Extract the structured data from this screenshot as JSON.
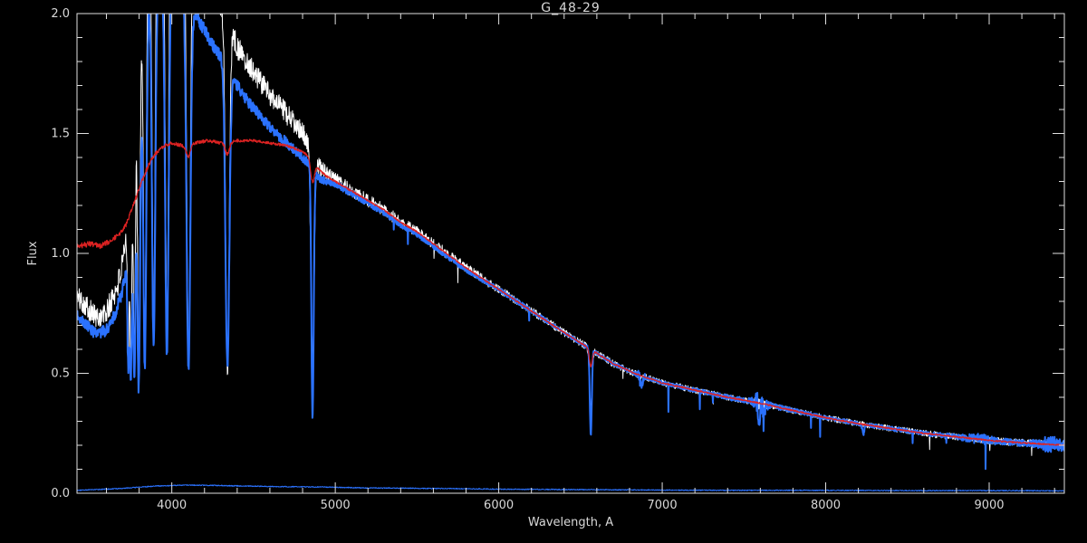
{
  "chart_data": {
    "type": "line",
    "title": "G_48-29",
    "xlabel": "Wavelength, A",
    "ylabel": "Flux",
    "xlim": [
      3420,
      9460
    ],
    "ylim": [
      0,
      2
    ],
    "grid": false,
    "legend": "none",
    "background": "#000000",
    "axis_color": "#e0e0e0",
    "text_color": "#d8d8d8",
    "x_ticks": {
      "values": [
        4000,
        5000,
        6000,
        7000,
        8000,
        9000
      ],
      "labels": [
        "4000",
        "5000",
        "6000",
        "7000",
        "8000",
        "9000"
      ]
    },
    "y_ticks": {
      "values": [
        0,
        0.5,
        1,
        1.5,
        2
      ],
      "labels": [
        "0.0",
        "0.5",
        "1.0",
        "1.5",
        "2.0"
      ]
    },
    "x_minor_step": 200,
    "y_minor_step": 0.1,
    "series": [
      {
        "name": "observed-white",
        "color": "#ffffff",
        "width": 1,
        "seed": 101,
        "continuum": [
          [
            3420,
            0.82
          ],
          [
            3480,
            0.78
          ],
          [
            3540,
            0.73
          ],
          [
            3600,
            0.75
          ],
          [
            3660,
            0.85
          ],
          [
            3700,
            0.95
          ],
          [
            3740,
            1.15
          ],
          [
            3780,
            1.55
          ],
          [
            3820,
            2.0
          ],
          [
            3860,
            2.35
          ],
          [
            3920,
            2.5
          ],
          [
            4000,
            2.55
          ],
          [
            4080,
            2.45
          ],
          [
            4160,
            2.3
          ],
          [
            4240,
            2.1
          ],
          [
            4320,
            2.0
          ],
          [
            4400,
            1.86
          ],
          [
            4480,
            1.78
          ],
          [
            4560,
            1.7
          ],
          [
            4640,
            1.63
          ],
          [
            4720,
            1.57
          ],
          [
            4800,
            1.5
          ],
          [
            4860,
            1.44
          ],
          [
            4900,
            1.36
          ],
          [
            4950,
            1.33
          ],
          [
            5000,
            1.31
          ],
          [
            5100,
            1.26
          ],
          [
            5200,
            1.22
          ],
          [
            5300,
            1.18
          ],
          [
            5400,
            1.13
          ],
          [
            5500,
            1.09
          ],
          [
            5660,
            1.01
          ],
          [
            5800,
            0.94
          ],
          [
            6000,
            0.85
          ],
          [
            6200,
            0.76
          ],
          [
            6400,
            0.67
          ],
          [
            6563,
            0.6
          ],
          [
            6700,
            0.54
          ],
          [
            6830,
            0.5
          ],
          [
            7000,
            0.46
          ],
          [
            7200,
            0.43
          ],
          [
            7400,
            0.4
          ],
          [
            7600,
            0.375
          ],
          [
            7800,
            0.345
          ],
          [
            8000,
            0.315
          ],
          [
            8200,
            0.29
          ],
          [
            8400,
            0.27
          ],
          [
            8600,
            0.25
          ],
          [
            8800,
            0.235
          ],
          [
            9000,
            0.22
          ],
          [
            9200,
            0.21
          ],
          [
            9460,
            0.2
          ]
        ],
        "noise": [
          [
            3420,
            0.045
          ],
          [
            3800,
            0.06
          ],
          [
            4300,
            0.05
          ],
          [
            4800,
            0.045
          ],
          [
            5000,
            0.03
          ],
          [
            5400,
            0.024
          ],
          [
            5800,
            0.02
          ],
          [
            6200,
            0.017
          ],
          [
            6563,
            0.015
          ],
          [
            7000,
            0.013
          ],
          [
            7600,
            0.013
          ],
          [
            8000,
            0.012
          ],
          [
            8600,
            0.013
          ],
          [
            9000,
            0.015
          ],
          [
            9460,
            0.018
          ]
        ],
        "bursts": [
          {
            "c": 7600,
            "amp": 0.02,
            "w": 25
          }
        ],
        "lines": [
          {
            "c": 3734,
            "d": 0.55,
            "w": 5
          },
          {
            "c": 3750,
            "d": 0.7,
            "w": 5
          },
          {
            "c": 3771,
            "d": 0.9,
            "w": 6
          },
          {
            "c": 3798,
            "d": 1.25,
            "w": 7
          },
          {
            "c": 3835,
            "d": 1.55,
            "w": 8
          },
          {
            "c": 3889,
            "d": 1.75,
            "w": 9
          },
          {
            "c": 3970,
            "d": 1.85,
            "w": 10
          },
          {
            "c": 4102,
            "d": 1.85,
            "w": 11
          },
          {
            "c": 4340,
            "d": 1.45,
            "w": 11
          },
          {
            "c": 4861,
            "d": 0.88,
            "w": 10
          },
          {
            "c": 6563,
            "d": 0.25,
            "w": 8
          }
        ],
        "spike_prob": 0.004,
        "spike_depth": 0.06,
        "spike_min": 5200
      },
      {
        "name": "observed-blue",
        "color": "#2b72ff",
        "width": 2,
        "seed": 202,
        "continuum": [
          [
            3420,
            0.74
          ],
          [
            3480,
            0.7
          ],
          [
            3540,
            0.66
          ],
          [
            3600,
            0.68
          ],
          [
            3660,
            0.76
          ],
          [
            3700,
            0.85
          ],
          [
            3740,
            1.02
          ],
          [
            3780,
            1.35
          ],
          [
            3820,
            1.75
          ],
          [
            3860,
            2.05
          ],
          [
            3920,
            2.15
          ],
          [
            4000,
            2.2
          ],
          [
            4080,
            2.1
          ],
          [
            4160,
            1.98
          ],
          [
            4240,
            1.88
          ],
          [
            4320,
            1.8
          ],
          [
            4400,
            1.7
          ],
          [
            4480,
            1.62
          ],
          [
            4560,
            1.56
          ],
          [
            4640,
            1.5
          ],
          [
            4720,
            1.45
          ],
          [
            4800,
            1.4
          ],
          [
            4860,
            1.36
          ],
          [
            4900,
            1.31
          ],
          [
            4950,
            1.3
          ],
          [
            5000,
            1.29
          ],
          [
            5100,
            1.25
          ],
          [
            5200,
            1.21
          ],
          [
            5300,
            1.17
          ],
          [
            5400,
            1.12
          ],
          [
            5500,
            1.08
          ],
          [
            5660,
            1.0
          ],
          [
            5800,
            0.93
          ],
          [
            6000,
            0.85
          ],
          [
            6200,
            0.76
          ],
          [
            6400,
            0.67
          ],
          [
            6563,
            0.6
          ],
          [
            6700,
            0.54
          ],
          [
            6830,
            0.5
          ],
          [
            7000,
            0.46
          ],
          [
            7200,
            0.43
          ],
          [
            7400,
            0.4
          ],
          [
            7600,
            0.375
          ],
          [
            7800,
            0.345
          ],
          [
            8000,
            0.315
          ],
          [
            8200,
            0.29
          ],
          [
            8400,
            0.27
          ],
          [
            8600,
            0.25
          ],
          [
            8800,
            0.235
          ],
          [
            9000,
            0.22
          ],
          [
            9200,
            0.21
          ],
          [
            9460,
            0.2
          ]
        ],
        "noise": [
          [
            3420,
            0.022
          ],
          [
            3800,
            0.03
          ],
          [
            4300,
            0.025
          ],
          [
            4800,
            0.02
          ],
          [
            5000,
            0.014
          ],
          [
            5800,
            0.01
          ],
          [
            6563,
            0.008
          ],
          [
            7000,
            0.007
          ],
          [
            7600,
            0.012
          ],
          [
            8000,
            0.007
          ],
          [
            8600,
            0.009
          ],
          [
            9000,
            0.012
          ],
          [
            9460,
            0.016
          ]
        ],
        "bursts": [
          {
            "c": 7600,
            "amp": 0.05,
            "w": 25
          },
          {
            "c": 6870,
            "amp": 0.02,
            "w": 15
          },
          {
            "c": 8950,
            "amp": 0.012,
            "w": 60
          },
          {
            "c": 9380,
            "amp": 0.02,
            "w": 50
          }
        ],
        "lines": [
          {
            "c": 3734,
            "d": 0.45,
            "w": 6
          },
          {
            "c": 3750,
            "d": 0.6,
            "w": 6
          },
          {
            "c": 3771,
            "d": 0.8,
            "w": 7
          },
          {
            "c": 3798,
            "d": 1.1,
            "w": 8
          },
          {
            "c": 3835,
            "d": 1.35,
            "w": 9
          },
          {
            "c": 3889,
            "d": 1.5,
            "w": 10
          },
          {
            "c": 3970,
            "d": 1.6,
            "w": 11
          },
          {
            "c": 4102,
            "d": 1.55,
            "w": 12
          },
          {
            "c": 4340,
            "d": 1.25,
            "w": 12
          },
          {
            "c": 4861,
            "d": 1.05,
            "w": 7
          },
          {
            "c": 6563,
            "d": 0.36,
            "w": 6
          },
          {
            "c": 6872,
            "d": 0.05,
            "w": 6
          },
          {
            "c": 7594,
            "d": 0.1,
            "w": 5
          },
          {
            "c": 7621,
            "d": 0.08,
            "w": 5
          },
          {
            "c": 8230,
            "d": 0.04,
            "w": 6
          }
        ],
        "spike_prob": 0.005,
        "spike_depth": 0.09,
        "spike_min": 5200
      },
      {
        "name": "model-red",
        "color": "#dd2222",
        "width": 1.2,
        "seed": 303,
        "continuum": [
          [
            3420,
            1.03
          ],
          [
            3500,
            1.04
          ],
          [
            3560,
            1.03
          ],
          [
            3620,
            1.05
          ],
          [
            3680,
            1.08
          ],
          [
            3720,
            1.12
          ],
          [
            3760,
            1.19
          ],
          [
            3800,
            1.27
          ],
          [
            3840,
            1.34
          ],
          [
            3880,
            1.4
          ],
          [
            3920,
            1.43
          ],
          [
            3960,
            1.45
          ],
          [
            4000,
            1.46
          ],
          [
            4060,
            1.45
          ],
          [
            4140,
            1.46
          ],
          [
            4220,
            1.47
          ],
          [
            4300,
            1.46
          ],
          [
            4400,
            1.47
          ],
          [
            4500,
            1.47
          ],
          [
            4600,
            1.46
          ],
          [
            4700,
            1.45
          ],
          [
            4780,
            1.43
          ],
          [
            4860,
            1.4
          ],
          [
            4900,
            1.35
          ],
          [
            4950,
            1.32
          ],
          [
            5000,
            1.3
          ],
          [
            5100,
            1.26
          ],
          [
            5200,
            1.22
          ],
          [
            5300,
            1.18
          ],
          [
            5400,
            1.13
          ],
          [
            5500,
            1.09
          ],
          [
            5660,
            1.01
          ],
          [
            5800,
            0.94
          ],
          [
            6000,
            0.85
          ],
          [
            6200,
            0.76
          ],
          [
            6400,
            0.67
          ],
          [
            6563,
            0.6
          ],
          [
            6700,
            0.54
          ],
          [
            6830,
            0.5
          ],
          [
            7000,
            0.46
          ],
          [
            7200,
            0.43
          ],
          [
            7400,
            0.4
          ],
          [
            7600,
            0.375
          ],
          [
            7800,
            0.345
          ],
          [
            8000,
            0.315
          ],
          [
            8200,
            0.29
          ],
          [
            8400,
            0.27
          ],
          [
            8600,
            0.25
          ],
          [
            8800,
            0.235
          ],
          [
            9000,
            0.22
          ],
          [
            9200,
            0.21
          ],
          [
            9460,
            0.2
          ]
        ],
        "noise": [
          [
            3420,
            0.012
          ],
          [
            3900,
            0.008
          ],
          [
            5000,
            0.004
          ],
          [
            6000,
            0.003
          ],
          [
            9460,
            0.003
          ]
        ],
        "lines": [
          {
            "c": 4102,
            "d": 0.05,
            "w": 13
          },
          {
            "c": 4340,
            "d": 0.05,
            "w": 13
          },
          {
            "c": 4861,
            "d": 0.1,
            "w": 12
          },
          {
            "c": 6563,
            "d": 0.07,
            "w": 9
          }
        ]
      },
      {
        "name": "error-blue",
        "color": "#2b72ff",
        "width": 1,
        "seed": 404,
        "continuum": [
          [
            3420,
            0.012
          ],
          [
            3700,
            0.02
          ],
          [
            3900,
            0.03
          ],
          [
            4100,
            0.034
          ],
          [
            4300,
            0.032
          ],
          [
            4600,
            0.028
          ],
          [
            4900,
            0.026
          ],
          [
            5200,
            0.022
          ],
          [
            5600,
            0.02
          ],
          [
            6000,
            0.017
          ],
          [
            6500,
            0.015
          ],
          [
            7000,
            0.013
          ],
          [
            7500,
            0.012
          ],
          [
            8000,
            0.012
          ],
          [
            8500,
            0.011
          ],
          [
            9000,
            0.011
          ],
          [
            9460,
            0.01
          ]
        ],
        "noise": [
          [
            3420,
            0.002
          ],
          [
            9460,
            0.002
          ]
        ]
      }
    ]
  }
}
